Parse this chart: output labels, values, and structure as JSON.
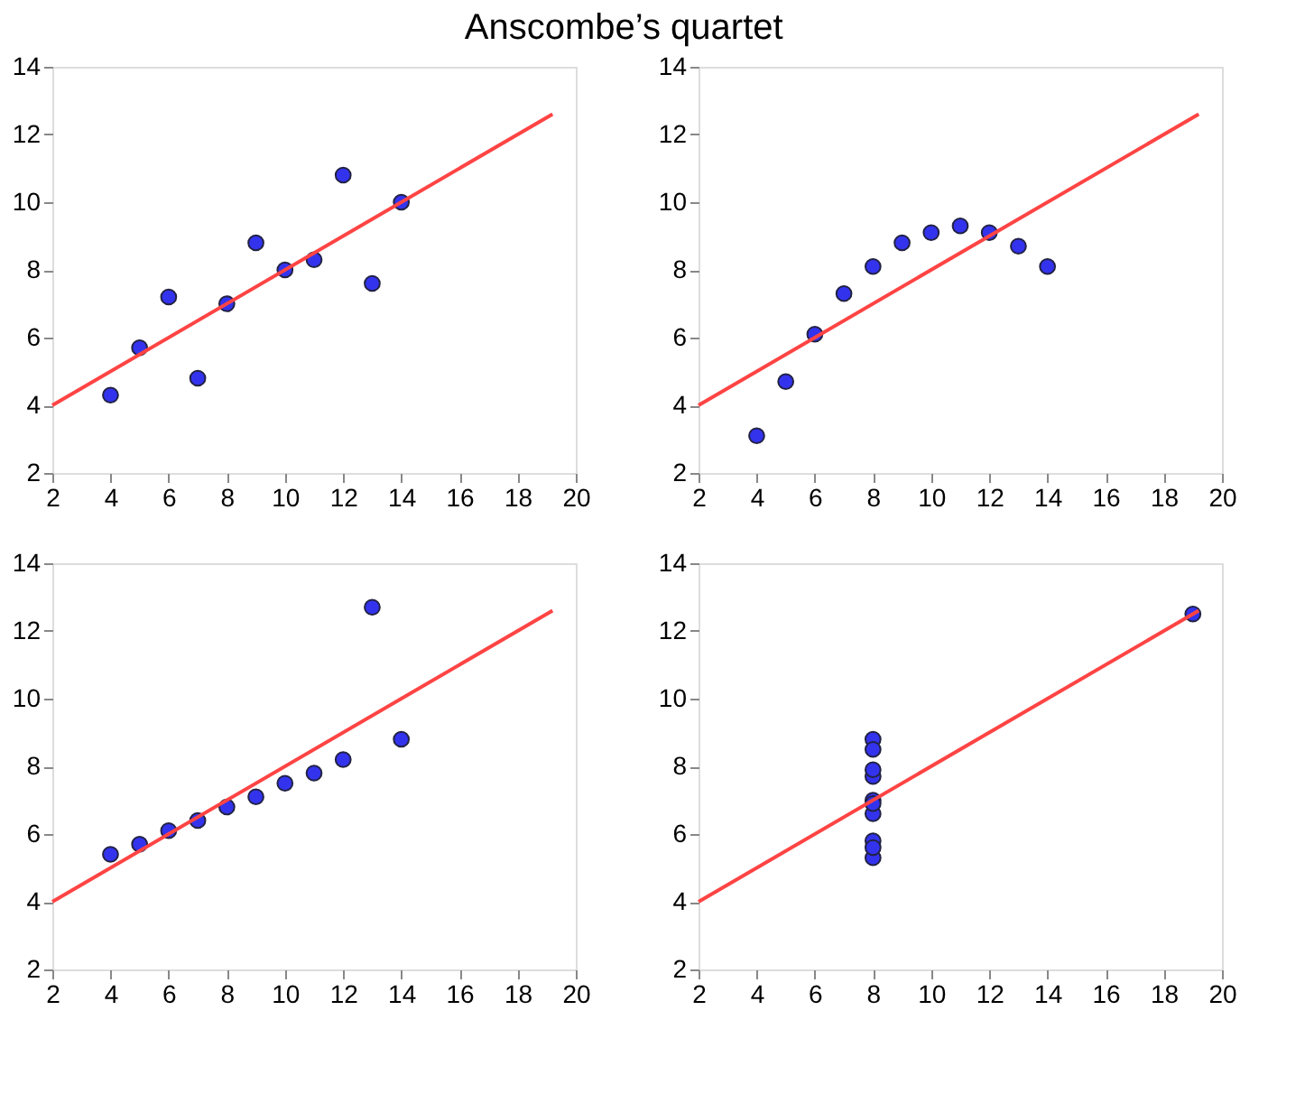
{
  "chart_data": [
    {
      "type": "scatter",
      "title": "Anscombe’s quartet",
      "xlim": [
        2,
        20
      ],
      "ylim": [
        2,
        14
      ],
      "xticks": [
        2,
        4,
        6,
        8,
        10,
        12,
        14,
        16,
        18,
        20
      ],
      "yticks": [
        2,
        4,
        6,
        8,
        10,
        12,
        14
      ],
      "grid": false,
      "series": [
        {
          "type": "scatter",
          "marker": "circle",
          "color": "#3333ee",
          "x": [
            10,
            8,
            13,
            9,
            11,
            14,
            6,
            4,
            12,
            7,
            5
          ],
          "values": [
            8.0,
            7.0,
            7.6,
            8.8,
            8.3,
            10.0,
            7.2,
            4.3,
            10.8,
            4.8,
            5.7
          ]
        },
        {
          "type": "line",
          "color": "#ff4444",
          "x": [
            2,
            19.2
          ],
          "values": [
            4.0,
            12.6
          ]
        }
      ]
    },
    {
      "type": "scatter",
      "xlim": [
        2,
        20
      ],
      "ylim": [
        2,
        14
      ],
      "xticks": [
        2,
        4,
        6,
        8,
        10,
        12,
        14,
        16,
        18,
        20
      ],
      "yticks": [
        2,
        4,
        6,
        8,
        10,
        12,
        14
      ],
      "grid": false,
      "series": [
        {
          "type": "scatter",
          "marker": "circle",
          "color": "#3333ee",
          "x": [
            10,
            8,
            13,
            9,
            11,
            14,
            6,
            4,
            12,
            7,
            5
          ],
          "values": [
            9.1,
            8.1,
            8.7,
            8.8,
            9.3,
            8.1,
            6.1,
            3.1,
            9.1,
            7.3,
            4.7
          ]
        },
        {
          "type": "line",
          "color": "#ff4444",
          "x": [
            2,
            19.2
          ],
          "values": [
            4.0,
            12.6
          ]
        }
      ]
    },
    {
      "type": "scatter",
      "xlim": [
        2,
        20
      ],
      "ylim": [
        2,
        14
      ],
      "xticks": [
        2,
        4,
        6,
        8,
        10,
        12,
        14,
        16,
        18,
        20
      ],
      "yticks": [
        2,
        4,
        6,
        8,
        10,
        12,
        14
      ],
      "grid": false,
      "series": [
        {
          "type": "scatter",
          "marker": "circle",
          "color": "#3333ee",
          "x": [
            10,
            8,
            13,
            9,
            11,
            14,
            6,
            4,
            12,
            7,
            5
          ],
          "values": [
            7.5,
            6.8,
            12.7,
            7.1,
            7.8,
            8.8,
            6.1,
            5.4,
            8.2,
            6.4,
            5.7
          ]
        },
        {
          "type": "line",
          "color": "#ff4444",
          "x": [
            2,
            19.2
          ],
          "values": [
            4.0,
            12.6
          ]
        }
      ]
    },
    {
      "type": "scatter",
      "xlim": [
        2,
        20
      ],
      "ylim": [
        2,
        14
      ],
      "xticks": [
        2,
        4,
        6,
        8,
        10,
        12,
        14,
        16,
        18,
        20
      ],
      "yticks": [
        2,
        4,
        6,
        8,
        10,
        12,
        14
      ],
      "grid": false,
      "series": [
        {
          "type": "scatter",
          "marker": "circle",
          "color": "#3333ee",
          "x": [
            8,
            8,
            8,
            8,
            8,
            8,
            8,
            19,
            8,
            8,
            8
          ],
          "values": [
            6.6,
            5.8,
            7.7,
            8.8,
            8.5,
            7.0,
            5.3,
            12.5,
            5.6,
            7.9,
            6.9
          ]
        },
        {
          "type": "line",
          "color": "#ff4444",
          "x": [
            2,
            19.2
          ],
          "values": [
            4.0,
            12.6
          ]
        }
      ]
    }
  ]
}
